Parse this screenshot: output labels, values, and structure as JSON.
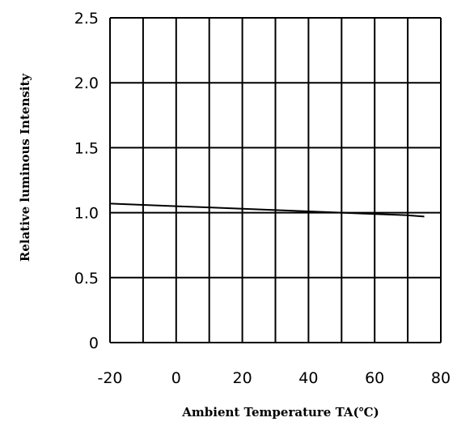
{
  "chart_data": {
    "type": "line",
    "title": "",
    "xlabel": "Ambient Temperature TA(℃)",
    "ylabel": "Relative luminous Intensity",
    "xlim": [
      -20,
      80
    ],
    "ylim": [
      0,
      2.5
    ],
    "x_ticks": [
      -20,
      0,
      20,
      40,
      60,
      80
    ],
    "x_tick_labels": [
      "-20",
      "0",
      "20",
      "40",
      "60",
      "80"
    ],
    "y_ticks": [
      0,
      0.5,
      1.0,
      1.5,
      2.0,
      2.5
    ],
    "y_tick_labels": [
      "0",
      "0.5",
      "1.0",
      "1.5",
      "2.0",
      "2.5"
    ],
    "x_minor_gridlines": [
      -10,
      10,
      30,
      50,
      70
    ],
    "grid": true,
    "series": [
      {
        "x": [
          -20,
          -10,
          0,
          10,
          20,
          30,
          40,
          50,
          60,
          70,
          75
        ],
        "y": [
          1.07,
          1.06,
          1.05,
          1.04,
          1.03,
          1.02,
          1.01,
          1.0,
          0.99,
          0.98,
          0.97
        ]
      }
    ],
    "colors": {
      "line": "#000000",
      "grid": "#000000",
      "background": "#ffffff"
    }
  }
}
